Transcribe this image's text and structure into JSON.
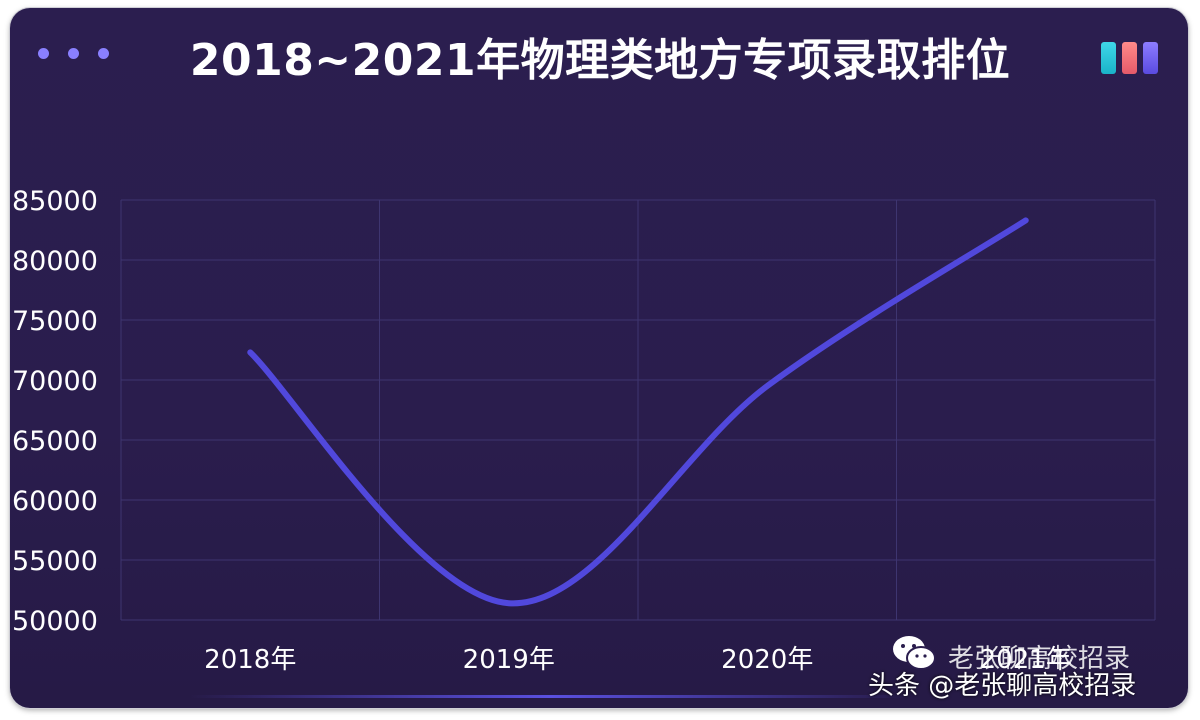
{
  "title": "2018~2021年物理类地方专项录取排位",
  "colors": {
    "background": "#2a1d4d",
    "line": "#5148dc",
    "grid": "#3e3570",
    "dots": "#8a80ff"
  },
  "header_icon": "window-dots-icon",
  "legend_icon": "three-color-bars-icon",
  "watermark": {
    "icon": "wechat-icon",
    "overlay_text": "老张聊高校招录",
    "text": "头条 @老张聊高校招录"
  },
  "chart_data": {
    "type": "line",
    "title": "2018~2021年物理类地方专项录取排位",
    "categories": [
      "2018年",
      "2019年",
      "2020年",
      "2021年"
    ],
    "series": [
      {
        "values": [
          72300,
          51400,
          69500,
          83300
        ]
      }
    ],
    "ylim": [
      50000,
      85000
    ],
    "yticks": [
      50000,
      55000,
      60000,
      65000,
      70000,
      75000,
      80000,
      85000
    ],
    "smooth": true,
    "grid": true,
    "legend": "none"
  }
}
